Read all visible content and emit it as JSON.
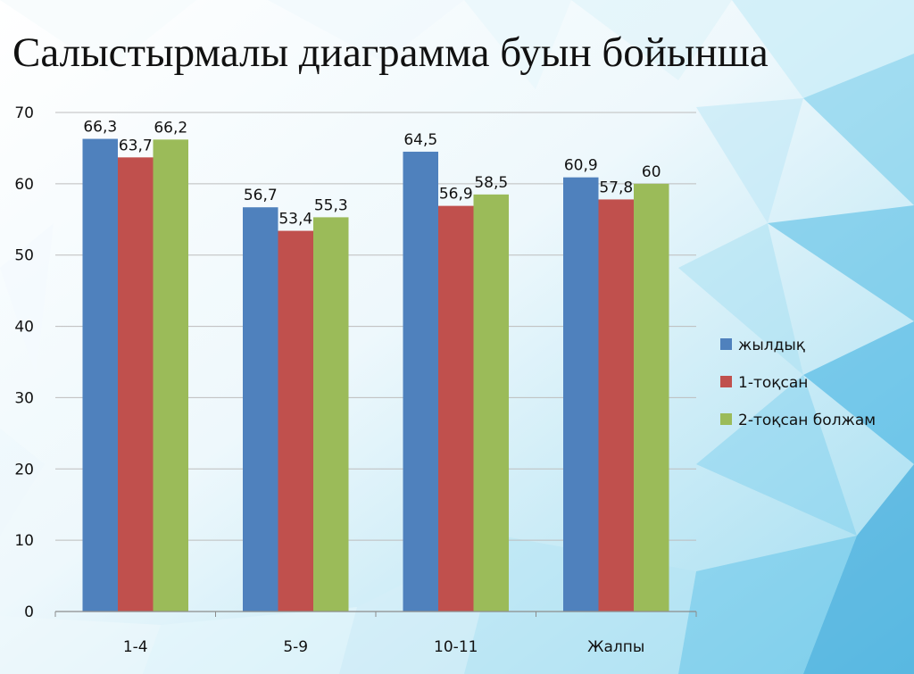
{
  "slide": {
    "title": "Салыстырмалы диаграмма буын бойынша"
  },
  "colors": {
    "series": [
      "#4f81bd",
      "#c0504d",
      "#9bbb59"
    ],
    "grid": "#bdbdbd",
    "axis": "#8c8c8c"
  },
  "chart_data": {
    "type": "bar",
    "title": "Салыстырмалы диаграмма буын бойынша",
    "categories": [
      "1-4",
      "5-9",
      "10-11",
      "Жалпы"
    ],
    "series": [
      {
        "name": "жылдық",
        "values": [
          66.3,
          56.7,
          64.5,
          60.9
        ],
        "labels": [
          "66,3",
          "56,7",
          "64,5",
          "60,9"
        ]
      },
      {
        "name": "1-тоқсан",
        "values": [
          63.7,
          53.4,
          56.9,
          57.8
        ],
        "labels": [
          "63,7",
          "53,4",
          "56,9",
          "57,8"
        ]
      },
      {
        "name": "2-тоқсан болжам",
        "values": [
          66.2,
          55.3,
          58.5,
          60
        ],
        "labels": [
          "66,2",
          "55,3",
          "58,5",
          "60"
        ]
      }
    ],
    "xlabel": "",
    "ylabel": "",
    "ylim": [
      0,
      70
    ],
    "yticks": [
      "0",
      "10",
      "20",
      "30",
      "40",
      "50",
      "60",
      "70"
    ],
    "grid": true,
    "legend_position": "right"
  }
}
